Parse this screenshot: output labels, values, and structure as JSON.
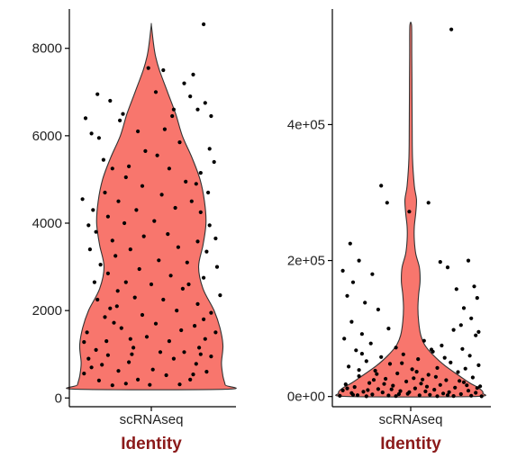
{
  "colors": {
    "violin_fill": "#F8766D",
    "violin_stroke": "#333333",
    "axis": "#000000",
    "point": "#000000",
    "xtitle": "#8B1A1A"
  },
  "chart_data": [
    {
      "type": "violin",
      "title": "",
      "title_note": "panel title cut off at top of image, not legible",
      "categories": [
        "scRNAseq"
      ],
      "xlabel": "Identity",
      "ylabel": "",
      "ylim": [
        -200,
        8900
      ],
      "yticks": [
        0,
        2000,
        4000,
        6000,
        8000
      ],
      "ytick_labels": [
        "0",
        "2000",
        "4000",
        "6000",
        "8000"
      ],
      "density": {
        "y": [
          200,
          300,
          500,
          800,
          1200,
          1600,
          2000,
          2500,
          3000,
          3500,
          4000,
          4500,
          5000,
          5500,
          6000,
          6500,
          7000,
          7500,
          7800,
          8100,
          8400,
          8550
        ],
        "width": [
          1.0,
          1.0,
          0.97,
          0.95,
          0.97,
          0.93,
          0.85,
          0.7,
          0.64,
          0.7,
          0.74,
          0.72,
          0.66,
          0.55,
          0.42,
          0.33,
          0.22,
          0.11,
          0.06,
          0.03,
          0.01,
          0.0
        ]
      },
      "points": [
        {
          "x": -0.88,
          "y": 6400
        },
        {
          "x": -0.72,
          "y": 6950
        },
        {
          "x": -0.55,
          "y": 6800
        },
        {
          "x": -0.42,
          "y": 6350
        },
        {
          "x": -0.38,
          "y": 6500
        },
        {
          "x": -0.7,
          "y": 5950
        },
        {
          "x": -0.8,
          "y": 6050
        },
        {
          "x": -0.64,
          "y": 5450
        },
        {
          "x": -0.52,
          "y": 5250
        },
        {
          "x": -0.34,
          "y": 5050
        },
        {
          "x": -0.62,
          "y": 4700
        },
        {
          "x": -0.92,
          "y": 4550
        },
        {
          "x": -0.78,
          "y": 4300
        },
        {
          "x": -0.58,
          "y": 4150
        },
        {
          "x": -0.84,
          "y": 3950
        },
        {
          "x": -0.74,
          "y": 3800
        },
        {
          "x": -0.52,
          "y": 3600
        },
        {
          "x": -0.82,
          "y": 3400
        },
        {
          "x": -0.48,
          "y": 3250
        },
        {
          "x": -0.68,
          "y": 3050
        },
        {
          "x": -0.58,
          "y": 2850
        },
        {
          "x": -0.76,
          "y": 2650
        },
        {
          "x": -0.45,
          "y": 2450
        },
        {
          "x": -0.72,
          "y": 2250
        },
        {
          "x": -0.55,
          "y": 2050
        },
        {
          "x": -0.62,
          "y": 1850
        },
        {
          "x": -0.5,
          "y": 1720
        },
        {
          "x": -0.86,
          "y": 1500
        },
        {
          "x": -0.9,
          "y": 1280
        },
        {
          "x": -0.74,
          "y": 1100
        },
        {
          "x": -0.84,
          "y": 900
        },
        {
          "x": -0.66,
          "y": 760
        },
        {
          "x": -0.9,
          "y": 560
        },
        {
          "x": -0.7,
          "y": 400
        },
        {
          "x": -0.52,
          "y": 290
        },
        {
          "x": -0.34,
          "y": 330
        },
        {
          "x": -0.44,
          "y": 620
        },
        {
          "x": -0.58,
          "y": 980
        },
        {
          "x": -0.28,
          "y": 1350
        },
        {
          "x": -0.4,
          "y": 1600
        },
        {
          "x": -0.24,
          "y": 1150
        },
        {
          "x": -0.18,
          "y": 420
        },
        {
          "x": -0.3,
          "y": 820
        },
        {
          "x": -0.12,
          "y": 1900
        },
        {
          "x": -0.22,
          "y": 2300
        },
        {
          "x": -0.34,
          "y": 2650
        },
        {
          "x": -0.16,
          "y": 2950
        },
        {
          "x": -0.28,
          "y": 3400
        },
        {
          "x": -0.1,
          "y": 3700
        },
        {
          "x": -0.36,
          "y": 4000
        },
        {
          "x": -0.2,
          "y": 4300
        },
        {
          "x": -0.44,
          "y": 4500
        },
        {
          "x": -0.12,
          "y": 4850
        },
        {
          "x": -0.3,
          "y": 5300
        },
        {
          "x": -0.08,
          "y": 5650
        },
        {
          "x": -0.18,
          "y": 6100
        },
        {
          "x": 0.06,
          "y": 7000
        },
        {
          "x": 0.16,
          "y": 7500
        },
        {
          "x": -0.04,
          "y": 7550
        },
        {
          "x": 0.3,
          "y": 6600
        },
        {
          "x": 0.52,
          "y": 6900
        },
        {
          "x": 0.62,
          "y": 6600
        },
        {
          "x": 0.72,
          "y": 6750
        },
        {
          "x": 0.8,
          "y": 6450
        },
        {
          "x": 0.7,
          "y": 8550
        },
        {
          "x": 0.56,
          "y": 7400
        },
        {
          "x": 0.44,
          "y": 7200
        },
        {
          "x": 0.78,
          "y": 5700
        },
        {
          "x": 0.84,
          "y": 5400
        },
        {
          "x": 0.66,
          "y": 5150
        },
        {
          "x": 0.6,
          "y": 4900
        },
        {
          "x": 0.76,
          "y": 4700
        },
        {
          "x": 0.54,
          "y": 4500
        },
        {
          "x": 0.66,
          "y": 4250
        },
        {
          "x": 0.78,
          "y": 3950
        },
        {
          "x": 0.86,
          "y": 3650
        },
        {
          "x": 0.62,
          "y": 3580
        },
        {
          "x": 0.74,
          "y": 3350
        },
        {
          "x": 0.88,
          "y": 3000
        },
        {
          "x": 0.7,
          "y": 2750
        },
        {
          "x": 0.5,
          "y": 2600
        },
        {
          "x": 0.92,
          "y": 2350
        },
        {
          "x": 0.62,
          "y": 2150
        },
        {
          "x": 0.8,
          "y": 1950
        },
        {
          "x": 0.7,
          "y": 1800
        },
        {
          "x": 0.58,
          "y": 1650
        },
        {
          "x": 0.86,
          "y": 1500
        },
        {
          "x": 0.72,
          "y": 1350
        },
        {
          "x": 0.64,
          "y": 1150
        },
        {
          "x": 0.8,
          "y": 950
        },
        {
          "x": 0.6,
          "y": 780
        },
        {
          "x": 0.74,
          "y": 600
        },
        {
          "x": 0.52,
          "y": 420
        },
        {
          "x": 0.38,
          "y": 310
        },
        {
          "x": 0.2,
          "y": 520
        },
        {
          "x": 0.3,
          "y": 900
        },
        {
          "x": 0.12,
          "y": 1050
        },
        {
          "x": 0.24,
          "y": 1300
        },
        {
          "x": 0.4,
          "y": 1550
        },
        {
          "x": 0.06,
          "y": 1700
        },
        {
          "x": 0.34,
          "y": 2000
        },
        {
          "x": 0.16,
          "y": 2250
        },
        {
          "x": 0.42,
          "y": 2500
        },
        {
          "x": 0.26,
          "y": 2800
        },
        {
          "x": 0.1,
          "y": 3150
        },
        {
          "x": 0.36,
          "y": 3450
        },
        {
          "x": 0.22,
          "y": 3750
        },
        {
          "x": 0.04,
          "y": 4050
        },
        {
          "x": 0.32,
          "y": 4350
        },
        {
          "x": 0.14,
          "y": 4650
        },
        {
          "x": 0.46,
          "y": 4950
        },
        {
          "x": 0.24,
          "y": 5250
        },
        {
          "x": 0.08,
          "y": 5550
        },
        {
          "x": 0.38,
          "y": 5850
        },
        {
          "x": 0.18,
          "y": 6150
        },
        {
          "x": 0.28,
          "y": 6450
        },
        {
          "x": -0.02,
          "y": 300
        },
        {
          "x": 0.02,
          "y": 650
        },
        {
          "x": -0.06,
          "y": 1400
        },
        {
          "x": 0.0,
          "y": 2600
        },
        {
          "x": -0.26,
          "y": 1000
        },
        {
          "x": 0.44,
          "y": 1050
        },
        {
          "x": -0.46,
          "y": 2100
        },
        {
          "x": 0.48,
          "y": 3100
        },
        {
          "x": -0.6,
          "y": 1300
        },
        {
          "x": 0.56,
          "y": 540
        },
        {
          "x": -0.8,
          "y": 700
        },
        {
          "x": 0.66,
          "y": 1000
        }
      ]
    },
    {
      "type": "violin",
      "title": "",
      "title_note": "panel title cut off at top of image, not legible",
      "categories": [
        "scRNAseq"
      ],
      "xlabel": "Identity",
      "ylabel": "",
      "ylim": [
        -15000,
        570000
      ],
      "yticks": [
        0,
        200000,
        400000
      ],
      "ytick_labels": [
        "0e+00",
        "2e+05",
        "4e+05"
      ],
      "density": {
        "y": [
          0,
          5000,
          12000,
          20000,
          30000,
          45000,
          60000,
          75000,
          90000,
          110000,
          130000,
          150000,
          170000,
          190000,
          210000,
          230000,
          250000,
          270000,
          290000,
          310000,
          350000,
          400000,
          450000,
          500000,
          545000
        ],
        "width": [
          0.86,
          1.0,
          0.95,
          0.82,
          0.68,
          0.48,
          0.32,
          0.2,
          0.14,
          0.11,
          0.1,
          0.11,
          0.13,
          0.12,
          0.07,
          0.05,
          0.05,
          0.07,
          0.08,
          0.05,
          0.025,
          0.02,
          0.018,
          0.015,
          0.012
        ]
      },
      "points": [
        {
          "x": 0.55,
          "y": 540000
        },
        {
          "x": -0.4,
          "y": 310000
        },
        {
          "x": -0.32,
          "y": 285000
        },
        {
          "x": 0.24,
          "y": 285000
        },
        {
          "x": -0.02,
          "y": 272000
        },
        {
          "x": -0.82,
          "y": 225000
        },
        {
          "x": -0.7,
          "y": 200000
        },
        {
          "x": 0.4,
          "y": 198000
        },
        {
          "x": 0.78,
          "y": 200000
        },
        {
          "x": 0.5,
          "y": 190000
        },
        {
          "x": -0.92,
          "y": 185000
        },
        {
          "x": -0.52,
          "y": 180000
        },
        {
          "x": -0.78,
          "y": 168000
        },
        {
          "x": 0.86,
          "y": 162000
        },
        {
          "x": 0.62,
          "y": 158000
        },
        {
          "x": -0.86,
          "y": 148000
        },
        {
          "x": 0.9,
          "y": 145000
        },
        {
          "x": -0.62,
          "y": 138000
        },
        {
          "x": 0.72,
          "y": 130000
        },
        {
          "x": -0.44,
          "y": 128000
        },
        {
          "x": 0.82,
          "y": 115000
        },
        {
          "x": -0.8,
          "y": 110000
        },
        {
          "x": 0.68,
          "y": 105000
        },
        {
          "x": -0.3,
          "y": 100000
        },
        {
          "x": 0.58,
          "y": 98000
        },
        {
          "x": 0.92,
          "y": 95000
        },
        {
          "x": -0.66,
          "y": 92000
        },
        {
          "x": 0.88,
          "y": 90000
        },
        {
          "x": -0.9,
          "y": 85000
        },
        {
          "x": 0.18,
          "y": 82000
        },
        {
          "x": -0.54,
          "y": 78000
        },
        {
          "x": 0.42,
          "y": 75000
        },
        {
          "x": -0.2,
          "y": 72000
        },
        {
          "x": 0.7,
          "y": 70000
        },
        {
          "x": -0.74,
          "y": 68000
        },
        {
          "x": 0.3,
          "y": 66000
        },
        {
          "x": -0.1,
          "y": 62000
        },
        {
          "x": 0.8,
          "y": 60000
        },
        {
          "x": -0.4,
          "y": 58000
        },
        {
          "x": 0.1,
          "y": 55000
        },
        {
          "x": -0.6,
          "y": 52000
        },
        {
          "x": 0.54,
          "y": 50000
        },
        {
          "x": -0.28,
          "y": 48000
        },
        {
          "x": 0.92,
          "y": 46000
        },
        {
          "x": -0.84,
          "y": 44000
        },
        {
          "x": 0.36,
          "y": 42000
        },
        {
          "x": 0.02,
          "y": 40000
        },
        {
          "x": -0.48,
          "y": 38000
        },
        {
          "x": 0.64,
          "y": 36000
        },
        {
          "x": -0.18,
          "y": 34000
        },
        {
          "x": 0.24,
          "y": 32000
        },
        {
          "x": -0.7,
          "y": 30000
        },
        {
          "x": 0.84,
          "y": 28000
        },
        {
          "x": -0.34,
          "y": 26000
        },
        {
          "x": 0.48,
          "y": 24000
        },
        {
          "x": -0.06,
          "y": 22000
        },
        {
          "x": 0.72,
          "y": 21000
        },
        {
          "x": -0.56,
          "y": 20000
        },
        {
          "x": 0.14,
          "y": 19000
        },
        {
          "x": -0.88,
          "y": 18000
        },
        {
          "x": 0.4,
          "y": 17000
        },
        {
          "x": -0.24,
          "y": 16000
        },
        {
          "x": 0.94,
          "y": 15000
        },
        {
          "x": -0.76,
          "y": 14000
        },
        {
          "x": 0.6,
          "y": 13000
        },
        {
          "x": 0.06,
          "y": 12000
        },
        {
          "x": -0.44,
          "y": 11000
        },
        {
          "x": 0.32,
          "y": 10000
        },
        {
          "x": -0.92,
          "y": 9000
        },
        {
          "x": 0.78,
          "y": 8500
        },
        {
          "x": -0.14,
          "y": 8000
        },
        {
          "x": 0.2,
          "y": 7500
        },
        {
          "x": -0.64,
          "y": 7000
        },
        {
          "x": 0.52,
          "y": 6500
        },
        {
          "x": -0.38,
          "y": 6000
        },
        {
          "x": 0.88,
          "y": 5500
        },
        {
          "x": -0.8,
          "y": 5000
        },
        {
          "x": 0.44,
          "y": 4500
        },
        {
          "x": -0.04,
          "y": 4000
        },
        {
          "x": 0.68,
          "y": 3500
        },
        {
          "x": -0.52,
          "y": 3000
        },
        {
          "x": 0.26,
          "y": 2500
        },
        {
          "x": -0.72,
          "y": 2000
        },
        {
          "x": 0.12,
          "y": 1800
        },
        {
          "x": -0.3,
          "y": 1500
        },
        {
          "x": 0.82,
          "y": 1200
        },
        {
          "x": -0.96,
          "y": 1000
        },
        {
          "x": 0.58,
          "y": 800
        },
        {
          "x": -0.2,
          "y": 600
        },
        {
          "x": 0.36,
          "y": 500
        },
        {
          "x": -0.6,
          "y": 400
        },
        {
          "x": 0.96,
          "y": 300
        },
        {
          "x": -0.86,
          "y": 12000
        },
        {
          "x": 0.16,
          "y": 25000
        },
        {
          "x": -0.46,
          "y": 33000
        },
        {
          "x": 0.74,
          "y": 41000
        },
        {
          "x": -0.12,
          "y": 49000
        },
        {
          "x": 0.46,
          "y": 57000
        },
        {
          "x": -0.66,
          "y": 63000
        },
        {
          "x": 0.28,
          "y": 69000
        },
        {
          "x": 0.04,
          "y": 27000
        },
        {
          "x": -0.36,
          "y": 18500
        },
        {
          "x": 0.66,
          "y": 23000
        },
        {
          "x": -0.58,
          "y": 9500
        },
        {
          "x": 0.9,
          "y": 12500
        },
        {
          "x": -0.16,
          "y": 3500
        },
        {
          "x": 0.22,
          "y": 14500
        },
        {
          "x": -0.78,
          "y": 2500
        },
        {
          "x": 0.5,
          "y": 2000
        },
        {
          "x": -0.26,
          "y": 10500
        },
        {
          "x": 0.76,
          "y": 16500
        },
        {
          "x": -0.02,
          "y": 6500
        },
        {
          "x": 0.34,
          "y": 29000
        },
        {
          "x": -0.5,
          "y": 24500
        },
        {
          "x": 0.08,
          "y": 36500
        },
        {
          "x": -0.7,
          "y": 39000
        }
      ]
    }
  ]
}
